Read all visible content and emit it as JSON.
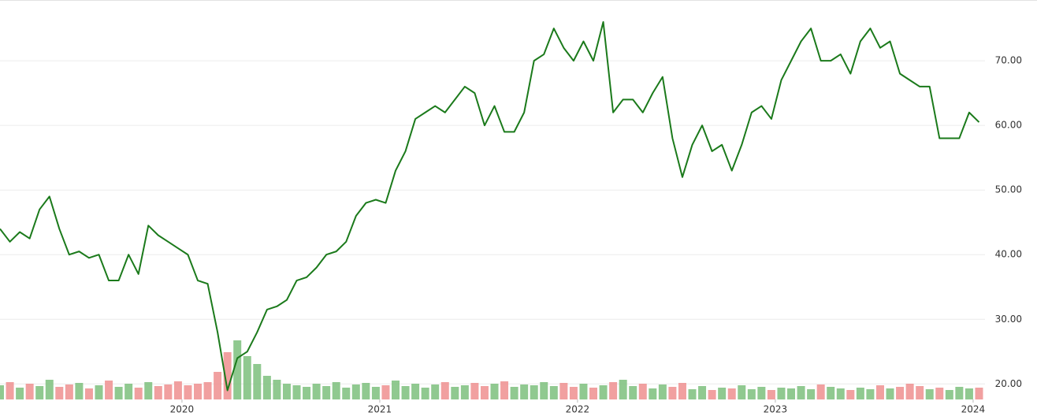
{
  "chart_data": {
    "type": "line",
    "x": [
      2019.08,
      2019.13,
      2019.18,
      2019.23,
      2019.28,
      2019.33,
      2019.38,
      2019.43,
      2019.48,
      2019.53,
      2019.58,
      2019.63,
      2019.68,
      2019.73,
      2019.78,
      2019.83,
      2019.88,
      2019.93,
      2019.98,
      2020.03,
      2020.08,
      2020.13,
      2020.18,
      2020.23,
      2020.28,
      2020.33,
      2020.38,
      2020.43,
      2020.48,
      2020.53,
      2020.58,
      2020.63,
      2020.68,
      2020.73,
      2020.78,
      2020.83,
      2020.88,
      2020.93,
      2020.98,
      2021.03,
      2021.08,
      2021.13,
      2021.18,
      2021.23,
      2021.28,
      2021.33,
      2021.38,
      2021.43,
      2021.48,
      2021.53,
      2021.58,
      2021.63,
      2021.68,
      2021.73,
      2021.78,
      2021.83,
      2021.88,
      2021.93,
      2021.98,
      2022.03,
      2022.08,
      2022.13,
      2022.18,
      2022.23,
      2022.28,
      2022.33,
      2022.38,
      2022.43,
      2022.48,
      2022.53,
      2022.58,
      2022.63,
      2022.68,
      2022.73,
      2022.78,
      2022.83,
      2022.88,
      2022.93,
      2022.98,
      2023.03,
      2023.08,
      2023.13,
      2023.18,
      2023.23,
      2023.28,
      2023.33,
      2023.38,
      2023.43,
      2023.48,
      2023.53,
      2023.58,
      2023.63,
      2023.68,
      2023.73,
      2023.78,
      2023.83,
      2023.88,
      2023.93,
      2023.98,
      2024.03
    ],
    "values": [
      44,
      42,
      43.5,
      42.5,
      47,
      49,
      44,
      40,
      40.5,
      39.5,
      40,
      36,
      36,
      40,
      37,
      44.5,
      43,
      42,
      41,
      40,
      36,
      35.5,
      28,
      19,
      24,
      25,
      28,
      31.5,
      32,
      33,
      36,
      36.5,
      38,
      40,
      40.5,
      42,
      46,
      48,
      48.5,
      48,
      53,
      56,
      61,
      62,
      63,
      62,
      64,
      66,
      65,
      60,
      63,
      59,
      59,
      62,
      70,
      71,
      75,
      72,
      70,
      73,
      70,
      76,
      62,
      64,
      64,
      62,
      65,
      67.5,
      58,
      52,
      57,
      60,
      56,
      57,
      53,
      57,
      62,
      63,
      61,
      67,
      70,
      73,
      75,
      70,
      70,
      71,
      68,
      73,
      75,
      72,
      73,
      68,
      67,
      66,
      66,
      58,
      58,
      58,
      62,
      60.5
    ],
    "color": "#1b7a1b",
    "xlim": [
      2019.08,
      2024.06
    ],
    "xticks": [
      2020,
      2021,
      2022,
      2023,
      2024
    ],
    "ylim": [
      17.6,
      79.4
    ],
    "yticks": [
      {
        "value": 20,
        "label": "20.00"
      },
      {
        "value": 30,
        "label": "30.00"
      },
      {
        "value": 40,
        "label": "40.00"
      },
      {
        "value": 50,
        "label": "50.00"
      },
      {
        "value": 60,
        "label": "60.00"
      },
      {
        "value": 70,
        "label": "70.00"
      }
    ],
    "grid": true,
    "volume": {
      "values": [
        18,
        22,
        15,
        20,
        17,
        25,
        16,
        19,
        21,
        14,
        18,
        24,
        16,
        20,
        15,
        22,
        17,
        19,
        23,
        18,
        20,
        22,
        35,
        60,
        75,
        55,
        45,
        30,
        25,
        20,
        18,
        16,
        20,
        17,
        22,
        15,
        19,
        21,
        16,
        18,
        24,
        17,
        20,
        15,
        19,
        22,
        16,
        18,
        21,
        17,
        20,
        23,
        16,
        19,
        18,
        22,
        17,
        21,
        16,
        20,
        15,
        18,
        22,
        25,
        17,
        20,
        14,
        19,
        16,
        21,
        13,
        17,
        12,
        15,
        14,
        18,
        13,
        16,
        12,
        15,
        14,
        17,
        13,
        19,
        16,
        14,
        12,
        15,
        13,
        18,
        14,
        16,
        20,
        17,
        13,
        15,
        12,
        16,
        14,
        15
      ],
      "ylim": [
        0,
        100
      ],
      "up_color": "#7cbf7c",
      "down_color": "#ee8f8f"
    }
  }
}
